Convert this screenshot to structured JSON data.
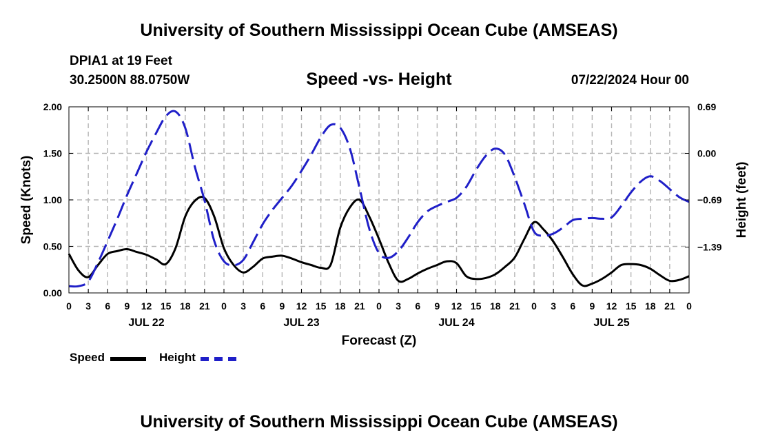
{
  "header": {
    "title_top": "University of Southern Mississippi Ocean Cube (AMSEAS)",
    "station": "DPIA1 at 19 Feet",
    "coords": "30.2500N  88.0750W",
    "subtitle": "Speed -vs- Height",
    "datetime": "07/22/2024 Hour 00",
    "title_bottom": "University of Southern Mississippi Ocean Cube (AMSEAS)"
  },
  "legend": {
    "speed_label": "Speed",
    "height_label": "Height"
  },
  "colors": {
    "speed": "#000000",
    "height": "#1f1fc8",
    "grid": "#b4b4b4"
  },
  "chart_data": {
    "type": "line",
    "title": "Speed -vs- Height",
    "xlabel": "Forecast (Z)",
    "ylabel": "Speed (Knots)",
    "y2label": "Height (feet)",
    "xlim": [
      0,
      96
    ],
    "ylim": [
      0,
      2
    ],
    "y2lim": [
      -2.07,
      0.69
    ],
    "x_ticks": [
      0,
      3,
      6,
      9,
      12,
      15,
      18,
      21,
      24,
      27,
      30,
      33,
      36,
      39,
      42,
      45,
      48,
      51,
      54,
      57,
      60,
      63,
      66,
      69,
      72,
      75,
      78,
      81,
      84,
      87,
      90,
      93,
      96
    ],
    "x_tick_labels": [
      "0",
      "3",
      "6",
      "9",
      "12",
      "15",
      "18",
      "21",
      "0",
      "3",
      "6",
      "9",
      "12",
      "15",
      "18",
      "21",
      "0",
      "3",
      "6",
      "9",
      "12",
      "15",
      "18",
      "21",
      "0",
      "3",
      "6",
      "9",
      "12",
      "15",
      "18",
      "21",
      "0"
    ],
    "day_labels": [
      {
        "x": 12,
        "label": "JUL 22"
      },
      {
        "x": 36,
        "label": "JUL 23"
      },
      {
        "x": 60,
        "label": "JUL 24"
      },
      {
        "x": 84,
        "label": "JUL 25"
      }
    ],
    "y_ticks": [
      0,
      0.5,
      1,
      1.5,
      2
    ],
    "y_tick_labels": [
      "0.00",
      "0.50",
      "1.00",
      "1.50",
      "2.00"
    ],
    "y2_ticks": [
      0.69,
      0.0,
      -0.69,
      -1.39
    ],
    "y2_tick_labels": [
      "0.69",
      "0.00",
      "−0.69",
      "−1.39"
    ],
    "grid": true,
    "legend_position": "bottom-left",
    "series": [
      {
        "name": "Speed",
        "axis": "left",
        "style": "solid",
        "x": [
          0,
          1.5,
          3,
          4.5,
          6,
          7.5,
          9,
          10.5,
          12,
          13.5,
          15,
          16.5,
          18,
          19.5,
          21,
          22.5,
          24,
          25.5,
          27,
          28.5,
          30,
          31.5,
          33,
          34.5,
          36,
          37.5,
          39,
          40.5,
          42,
          43.5,
          45,
          46.5,
          48,
          49.5,
          51,
          52.5,
          54,
          55.5,
          57,
          58.5,
          60,
          61.5,
          63,
          64.5,
          66,
          67.5,
          69,
          70.5,
          72,
          73.5,
          75,
          76.5,
          78,
          79.5,
          81,
          82.5,
          84,
          85.5,
          87,
          88.5,
          90,
          91.5,
          93,
          94.5,
          96
        ],
        "values": [
          0.42,
          0.24,
          0.17,
          0.3,
          0.42,
          0.45,
          0.47,
          0.44,
          0.41,
          0.36,
          0.31,
          0.48,
          0.82,
          0.99,
          1.02,
          0.82,
          0.48,
          0.3,
          0.22,
          0.28,
          0.37,
          0.39,
          0.4,
          0.37,
          0.33,
          0.3,
          0.27,
          0.3,
          0.7,
          0.92,
          1.0,
          0.82,
          0.58,
          0.32,
          0.13,
          0.15,
          0.21,
          0.26,
          0.3,
          0.34,
          0.32,
          0.18,
          0.15,
          0.16,
          0.2,
          0.28,
          0.38,
          0.58,
          0.76,
          0.68,
          0.55,
          0.38,
          0.2,
          0.08,
          0.1,
          0.15,
          0.22,
          0.3,
          0.31,
          0.3,
          0.26,
          0.19,
          0.13,
          0.14,
          0.18
        ]
      },
      {
        "name": "Height",
        "axis": "right",
        "style": "dashed",
        "x": [
          0,
          1.5,
          3,
          4.5,
          6,
          7.5,
          9,
          10.5,
          12,
          13.5,
          15,
          16.5,
          18,
          19.5,
          21,
          22.5,
          24,
          25.5,
          27,
          28.5,
          30,
          31.5,
          33,
          34.5,
          36,
          37.5,
          39,
          40.5,
          42,
          43.5,
          45,
          46.5,
          48,
          49.5,
          51,
          52.5,
          54,
          55.5,
          57,
          58.5,
          60,
          61.5,
          63,
          64.5,
          66,
          67.5,
          69,
          70.5,
          72,
          73.5,
          75,
          76.5,
          78,
          79.5,
          81,
          82.5,
          84,
          85.5,
          87,
          88.5,
          90,
          91.5,
          93,
          94.5,
          96
        ],
        "values": [
          -1.97,
          -1.97,
          -1.9,
          -1.62,
          -1.3,
          -0.97,
          -0.62,
          -0.3,
          0.02,
          0.3,
          0.55,
          0.62,
          0.38,
          -0.2,
          -0.7,
          -1.3,
          -1.6,
          -1.66,
          -1.58,
          -1.32,
          -1.05,
          -0.84,
          -0.66,
          -0.48,
          -0.26,
          -0.02,
          0.24,
          0.42,
          0.38,
          0.07,
          -0.52,
          -1.12,
          -1.48,
          -1.55,
          -1.45,
          -1.25,
          -1.02,
          -0.86,
          -0.78,
          -0.72,
          -0.66,
          -0.5,
          -0.25,
          -0.04,
          0.07,
          -0.02,
          -0.35,
          -0.75,
          -1.16,
          -1.22,
          -1.19,
          -1.1,
          -0.99,
          -0.97,
          -0.96,
          -0.97,
          -0.95,
          -0.78,
          -0.58,
          -0.42,
          -0.34,
          -0.41,
          -0.53,
          -0.65,
          -0.72
        ]
      }
    ]
  }
}
